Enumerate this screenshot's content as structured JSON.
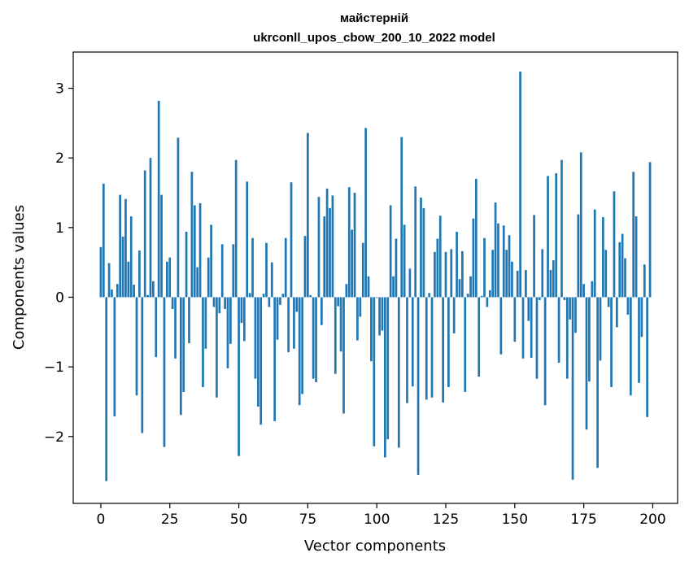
{
  "chart_data": {
    "type": "bar",
    "title_lines": [
      "майстерній",
      "ukrconll_upos_cbow_200_10_2022 model"
    ],
    "xlabel": "Vector components",
    "ylabel": "Components values",
    "xlim": [
      -10,
      209
    ],
    "ylim": [
      -2.96,
      3.52
    ],
    "xticks": [
      0,
      25,
      50,
      75,
      100,
      125,
      150,
      175,
      200
    ],
    "xtick_labels": [
      "0",
      "25",
      "50",
      "75",
      "100",
      "125",
      "150",
      "175",
      "200"
    ],
    "yticks": [
      -2,
      -1,
      0,
      1,
      2,
      3
    ],
    "ytick_labels": [
      "−2",
      "−1",
      "0",
      "1",
      "2",
      "3"
    ],
    "bar_color": "#1f77b4",
    "grid": false,
    "x": [
      0,
      1,
      2,
      3,
      4,
      5,
      6,
      7,
      8,
      9,
      10,
      11,
      12,
      13,
      14,
      15,
      16,
      17,
      18,
      19,
      20,
      21,
      22,
      23,
      24,
      25,
      26,
      27,
      28,
      29,
      30,
      31,
      32,
      33,
      34,
      35,
      36,
      37,
      38,
      39,
      40,
      41,
      42,
      43,
      44,
      45,
      46,
      47,
      48,
      49,
      50,
      51,
      52,
      53,
      54,
      55,
      56,
      57,
      58,
      59,
      60,
      61,
      62,
      63,
      64,
      65,
      66,
      67,
      68,
      69,
      70,
      71,
      72,
      73,
      74,
      75,
      76,
      77,
      78,
      79,
      80,
      81,
      82,
      83,
      84,
      85,
      86,
      87,
      88,
      89,
      90,
      91,
      92,
      93,
      94,
      95,
      96,
      97,
      98,
      99,
      100,
      101,
      102,
      103,
      104,
      105,
      106,
      107,
      108,
      109,
      110,
      111,
      112,
      113,
      114,
      115,
      116,
      117,
      118,
      119,
      120,
      121,
      122,
      123,
      124,
      125,
      126,
      127,
      128,
      129,
      130,
      131,
      132,
      133,
      134,
      135,
      136,
      137,
      138,
      139,
      140,
      141,
      142,
      143,
      144,
      145,
      146,
      147,
      148,
      149,
      150,
      151,
      152,
      153,
      154,
      155,
      156,
      157,
      158,
      159,
      160,
      161,
      162,
      163,
      164,
      165,
      166,
      167,
      168,
      169,
      170,
      171,
      172,
      173,
      174,
      175,
      176,
      177,
      178,
      179,
      180,
      181,
      182,
      183,
      184,
      185,
      186,
      187,
      188,
      189,
      190,
      191,
      192,
      193,
      194,
      195,
      196,
      197,
      198,
      199
    ],
    "values": [
      0.72,
      1.63,
      -2.64,
      0.49,
      0.11,
      -1.71,
      0.19,
      1.47,
      0.87,
      1.41,
      0.51,
      1.16,
      0.18,
      -1.41,
      0.67,
      -1.95,
      1.82,
      0.03,
      2.0,
      0.23,
      -0.86,
      2.82,
      1.47,
      -2.15,
      0.51,
      0.57,
      -0.17,
      -0.88,
      2.29,
      -1.69,
      -1.36,
      0.94,
      -0.66,
      1.8,
      1.32,
      0.43,
      1.35,
      -1.29,
      -0.74,
      0.57,
      1.04,
      -0.14,
      -1.44,
      -0.23,
      0.76,
      -0.17,
      -1.02,
      -0.67,
      0.76,
      1.97,
      -2.28,
      -0.37,
      -0.63,
      1.66,
      0.06,
      0.85,
      -1.17,
      -1.57,
      -1.83,
      0.05,
      0.78,
      -0.14,
      0.5,
      -1.78,
      -0.61,
      -0.11,
      0.05,
      0.85,
      -0.79,
      1.65,
      -0.74,
      -0.21,
      -1.55,
      -1.39,
      0.88,
      2.36,
      0.03,
      -1.17,
      -1.22,
      1.44,
      -0.4,
      1.16,
      1.56,
      1.28,
      1.46,
      -1.1,
      -0.13,
      -0.78,
      -1.67,
      0.19,
      1.58,
      0.97,
      1.5,
      -0.62,
      -0.28,
      0.78,
      2.43,
      0.3,
      -0.92,
      -2.14,
      -0.01,
      -0.55,
      -0.48,
      -2.3,
      -2.04,
      1.32,
      0.3,
      0.84,
      -2.16,
      2.3,
      1.04,
      -1.52,
      0.41,
      -1.28,
      1.59,
      -2.55,
      1.43,
      1.28,
      -1.47,
      0.06,
      -1.44,
      0.65,
      0.84,
      1.17,
      -1.51,
      0.65,
      -1.29,
      0.69,
      -0.52,
      0.94,
      0.26,
      0.66,
      -1.36,
      0.05,
      0.3,
      1.13,
      1.7,
      -1.14,
      0.02,
      0.85,
      -0.14,
      0.1,
      0.68,
      1.36,
      1.06,
      -0.82,
      1.03,
      0.68,
      0.89,
      0.51,
      -0.64,
      0.38,
      3.24,
      -0.88,
      0.39,
      -0.34,
      -0.87,
      1.18,
      -1.17,
      -0.04,
      0.69,
      -1.55,
      1.74,
      0.39,
      0.53,
      1.78,
      -0.94,
      1.97,
      -0.04,
      -1.17,
      -0.32,
      -2.62,
      -0.51,
      1.19,
      2.08,
      0.19,
      -1.9,
      -1.21,
      0.23,
      1.26,
      -2.45,
      -0.91,
      1.15,
      0.68,
      -0.14,
      -1.29,
      1.52,
      -0.43,
      0.79,
      0.91,
      0.56,
      -0.25,
      -1.41,
      1.8,
      1.16,
      -1.23,
      -0.57,
      0.47,
      -1.72,
      1.94
    ]
  }
}
